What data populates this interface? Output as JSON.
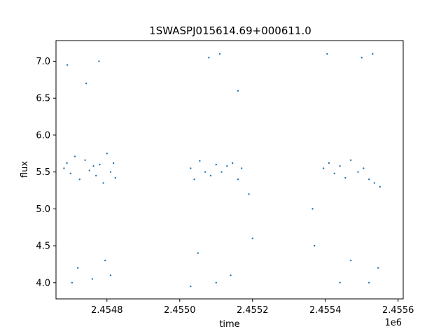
{
  "chart_data": {
    "type": "scatter",
    "title": "1SWASPJ015614.69+000611.0",
    "xlabel": "time",
    "ylabel": "flux",
    "x_offset_label": "1e6",
    "xlim": [
      2454660,
      2455614
    ],
    "ylim": [
      3.78,
      7.28
    ],
    "x_ticks": [
      2454800,
      2455000,
      2455200,
      2455400,
      2455600
    ],
    "x_tick_labels": [
      "2.4548",
      "2.4550",
      "2.4552",
      "2.4554",
      "2.4556"
    ],
    "y_ticks": [
      4.0,
      4.5,
      5.0,
      5.5,
      6.0,
      6.5,
      7.0
    ],
    "y_tick_labels": [
      "4.0",
      "4.5",
      "5.0",
      "5.5",
      "6.0",
      "6.5",
      "7.0"
    ],
    "grid": false,
    "marker_color": "#1f77b4",
    "series": [
      {
        "points_sample": [
          [
            2454682,
            5.55
          ],
          [
            2454690,
            5.62
          ],
          [
            2454700,
            5.48
          ],
          [
            2454712,
            5.71
          ],
          [
            2454725,
            5.4
          ],
          [
            2454740,
            5.66
          ],
          [
            2454752,
            5.52
          ],
          [
            2454763,
            5.58
          ],
          [
            2454770,
            5.45
          ],
          [
            2454780,
            5.6
          ],
          [
            2454790,
            5.35
          ],
          [
            2454800,
            5.75
          ],
          [
            2454810,
            5.5
          ],
          [
            2454818,
            5.62
          ],
          [
            2454823,
            5.42
          ],
          [
            2454691,
            6.95
          ],
          [
            2454743,
            6.7
          ],
          [
            2454778,
            7.0
          ],
          [
            2454720,
            4.2
          ],
          [
            2454760,
            4.05
          ],
          [
            2454795,
            4.3
          ],
          [
            2454704,
            4.0
          ],
          [
            2454810,
            4.1
          ]
        ]
      },
      {
        "points_sample": [
          [
            2455030,
            5.55
          ],
          [
            2455040,
            5.4
          ],
          [
            2455055,
            5.65
          ],
          [
            2455070,
            5.5
          ],
          [
            2455085,
            5.45
          ],
          [
            2455100,
            5.6
          ],
          [
            2455115,
            5.5
          ],
          [
            2455130,
            5.58
          ],
          [
            2455145,
            5.62
          ],
          [
            2455160,
            5.4
          ],
          [
            2455170,
            5.55
          ],
          [
            2455080,
            7.05
          ],
          [
            2455110,
            7.1
          ],
          [
            2455160,
            6.6
          ],
          [
            2455050,
            4.4
          ],
          [
            2455100,
            4.0
          ],
          [
            2455140,
            4.1
          ],
          [
            2455030,
            3.95
          ],
          [
            2455190,
            5.2
          ],
          [
            2455200,
            4.6
          ]
        ]
      },
      {
        "points_sample": [
          [
            2455395,
            5.55
          ],
          [
            2455410,
            5.62
          ],
          [
            2455425,
            5.48
          ],
          [
            2455440,
            5.58
          ],
          [
            2455455,
            5.42
          ],
          [
            2455470,
            5.66
          ],
          [
            2455490,
            5.5
          ],
          [
            2455505,
            5.55
          ],
          [
            2455520,
            5.4
          ],
          [
            2455535,
            5.35
          ],
          [
            2455550,
            5.3
          ],
          [
            2455405,
            7.1
          ],
          [
            2455500,
            7.05
          ],
          [
            2455530,
            7.1
          ],
          [
            2455440,
            4.0
          ],
          [
            2455470,
            4.3
          ],
          [
            2455520,
            4.0
          ],
          [
            2455545,
            4.2
          ],
          [
            2455370,
            4.5
          ],
          [
            2455365,
            5.0
          ]
        ]
      }
    ]
  }
}
